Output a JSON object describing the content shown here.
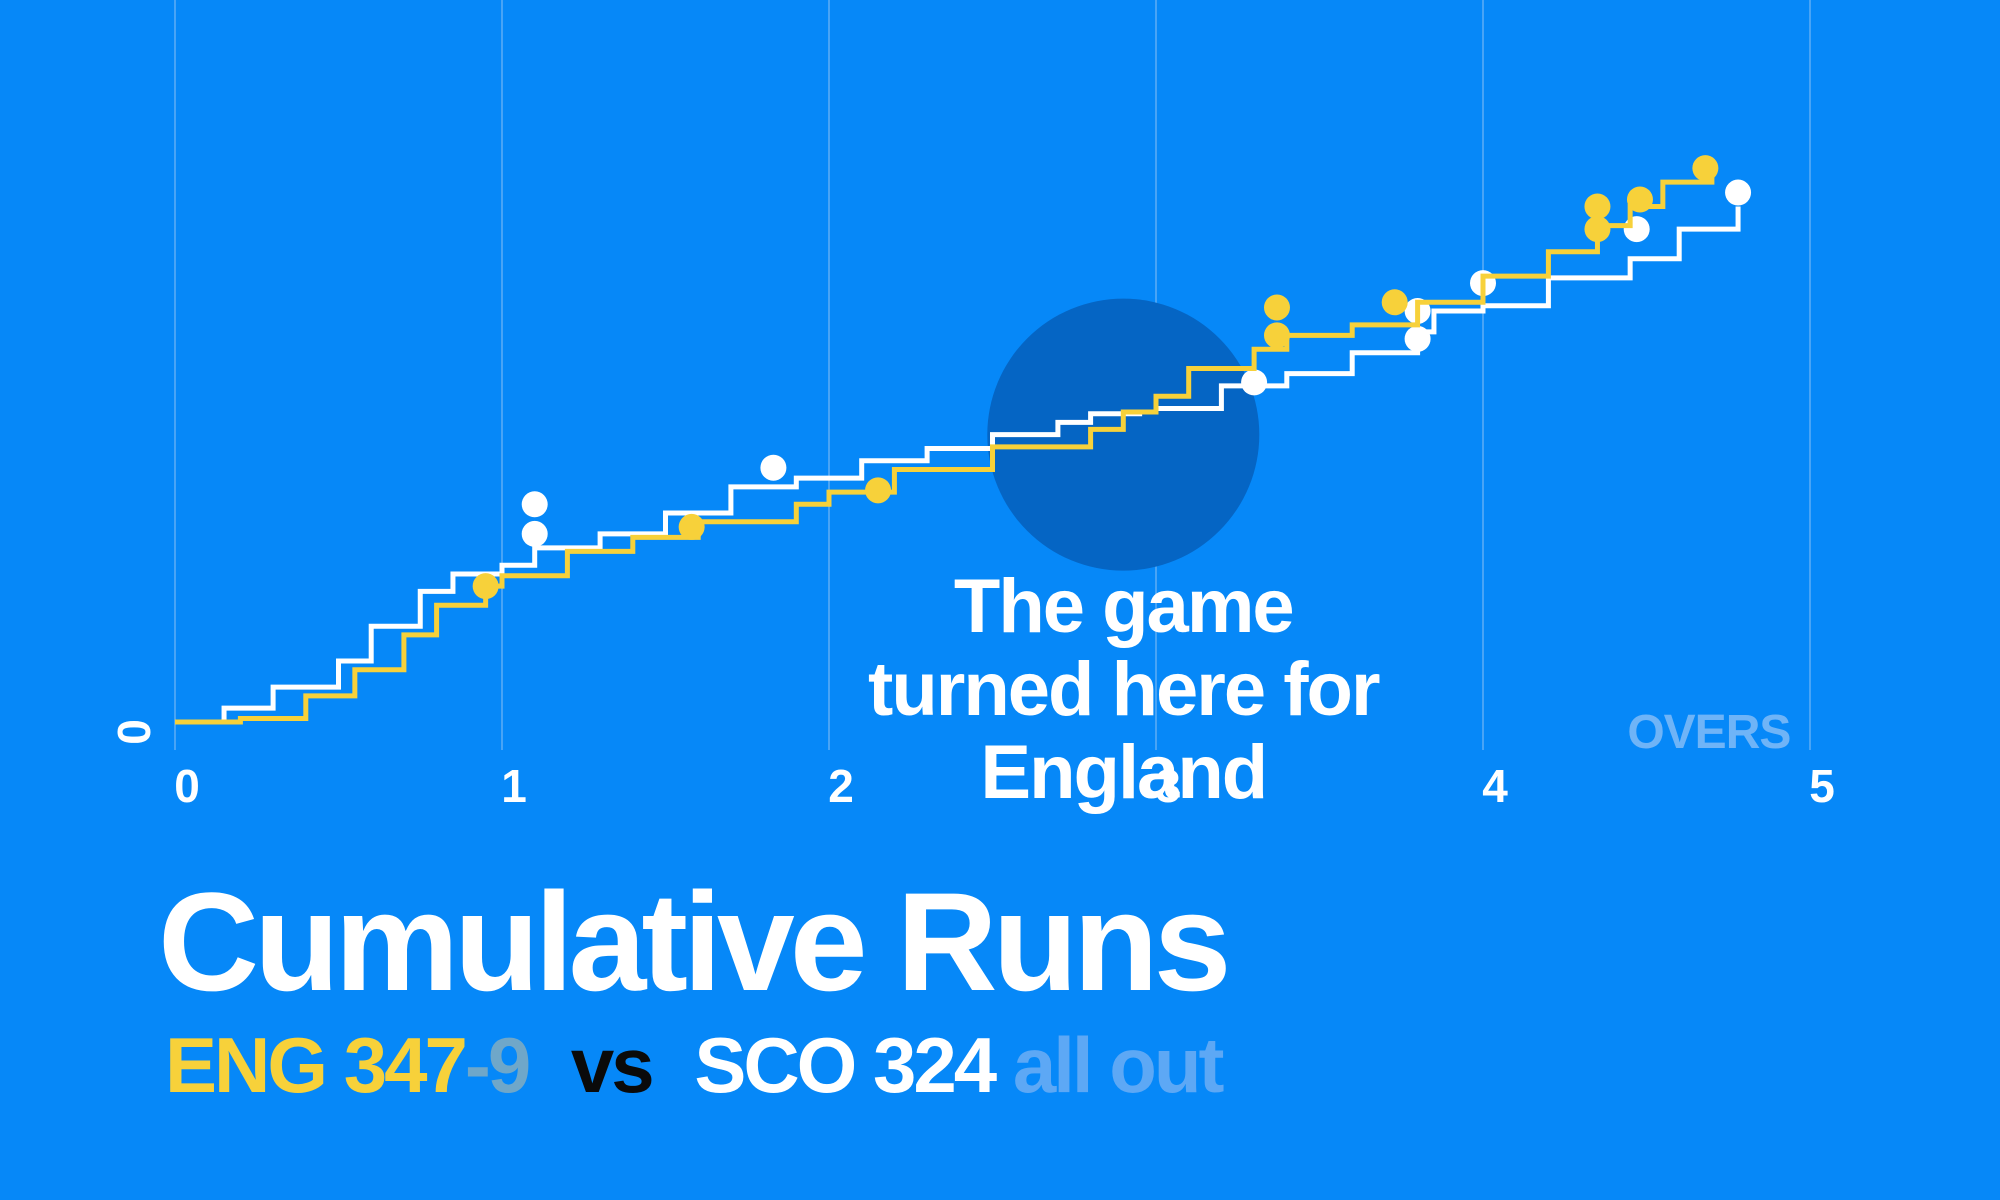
{
  "chart_data": {
    "type": "line",
    "title": "Cumulative Runs",
    "xlabel": "OVERS",
    "ylabel": "",
    "xlim": [
      0,
      5
    ],
    "ylim": [
      0,
      360
    ],
    "x_ticks": [
      "0",
      "1",
      "2",
      "3",
      "4",
      "5"
    ],
    "y_tick_label": "0",
    "grid": "vertical",
    "annotation": {
      "lines": [
        "The game",
        "turned here for",
        "England"
      ],
      "at": [
        2.9,
        170
      ]
    },
    "series": [
      {
        "name": "SCO",
        "color": "#FFFFFF",
        "points": [
          [
            0,
            0
          ],
          [
            0.15,
            8
          ],
          [
            0.3,
            20
          ],
          [
            0.5,
            35
          ],
          [
            0.6,
            55
          ],
          [
            0.75,
            75
          ],
          [
            0.85,
            85
          ],
          [
            1.0,
            90
          ],
          [
            1.1,
            100
          ],
          [
            1.3,
            108
          ],
          [
            1.5,
            120
          ],
          [
            1.7,
            135
          ],
          [
            1.9,
            140
          ],
          [
            2.1,
            150
          ],
          [
            2.3,
            157
          ],
          [
            2.5,
            165
          ],
          [
            2.7,
            172
          ],
          [
            2.8,
            177
          ],
          [
            2.95,
            178
          ],
          [
            3.0,
            180
          ],
          [
            3.2,
            193
          ],
          [
            3.4,
            200
          ],
          [
            3.6,
            212
          ],
          [
            3.8,
            224
          ],
          [
            3.85,
            236
          ],
          [
            4.0,
            239
          ],
          [
            4.2,
            255
          ],
          [
            4.45,
            266
          ],
          [
            4.6,
            283
          ],
          [
            4.78,
            296
          ]
        ],
        "wickets": [
          [
            1.1,
            108
          ],
          [
            1.1,
            125
          ],
          [
            1.83,
            146
          ],
          [
            3.3,
            195
          ],
          [
            3.8,
            220
          ],
          [
            3.8,
            236
          ],
          [
            4.0,
            252
          ],
          [
            4.47,
            283
          ],
          [
            4.78,
            304
          ]
        ]
      },
      {
        "name": "ENG",
        "color": "#F7D13A",
        "points": [
          [
            0,
            0
          ],
          [
            0.2,
            2
          ],
          [
            0.4,
            15
          ],
          [
            0.55,
            30
          ],
          [
            0.7,
            50
          ],
          [
            0.8,
            67
          ],
          [
            0.95,
            78
          ],
          [
            1.0,
            84
          ],
          [
            1.2,
            98
          ],
          [
            1.4,
            106
          ],
          [
            1.6,
            115
          ],
          [
            1.9,
            125
          ],
          [
            2.0,
            132
          ],
          [
            2.2,
            145
          ],
          [
            2.5,
            158
          ],
          [
            2.8,
            168
          ],
          [
            2.9,
            178
          ],
          [
            3.0,
            187
          ],
          [
            3.1,
            203
          ],
          [
            3.3,
            214
          ],
          [
            3.4,
            222
          ],
          [
            3.6,
            228
          ],
          [
            3.8,
            241
          ],
          [
            4.0,
            256
          ],
          [
            4.2,
            270
          ],
          [
            4.35,
            285
          ],
          [
            4.45,
            296
          ],
          [
            4.55,
            310
          ],
          [
            4.7,
            319
          ]
        ],
        "wickets": [
          [
            0.95,
            78
          ],
          [
            1.58,
            112
          ],
          [
            2.15,
            133
          ],
          [
            3.37,
            222
          ],
          [
            3.37,
            238
          ],
          [
            3.73,
            241
          ],
          [
            4.35,
            283
          ],
          [
            4.35,
            296
          ],
          [
            4.48,
            300
          ],
          [
            4.68,
            318
          ]
        ]
      }
    ]
  },
  "subtitle": {
    "eng_team": "ENG",
    "eng_score": "347",
    "eng_wickets": "-9",
    "vs": "vs",
    "sco_team": "SCO",
    "sco_score": "324",
    "sco_status": "all out"
  }
}
